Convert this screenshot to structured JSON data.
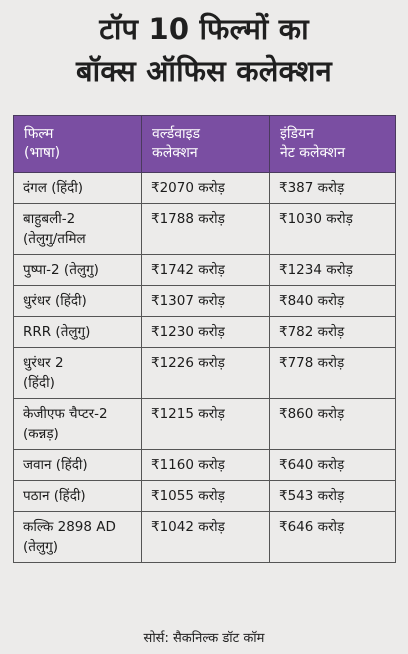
{
  "title": {
    "line1": "टॉप 10 फिल्मों का",
    "line2": "बॉक्स ऑफिस कलेक्शन"
  },
  "table": {
    "headers": [
      [
        "फिल्म",
        "(भाषा)"
      ],
      [
        "वर्ल्डवाइड",
        "कलेक्शन"
      ],
      [
        "इंडियन",
        "नेट कलेक्शन"
      ]
    ],
    "rows": [
      {
        "film": [
          "दंगल (हिंदी)"
        ],
        "worldwide": "₹2070 करोड़",
        "india": "₹387 करोड़"
      },
      {
        "film": [
          "बाहुबली-2",
          "(तेलुगु/तमिल"
        ],
        "worldwide": "₹1788 करोड़",
        "india": "₹1030 करोड़"
      },
      {
        "film": [
          "पुष्पा-2 (तेलुगु)"
        ],
        "worldwide": "₹1742 करोड़",
        "india": "₹1234 करोड़"
      },
      {
        "film": [
          "धुरंधर (हिंदी)"
        ],
        "worldwide": "₹1307 करोड़",
        "india": "₹840 करोड़"
      },
      {
        "film": [
          "RRR (तेलुगु)"
        ],
        "worldwide": "₹1230 करोड़",
        "india": "₹782 करोड़"
      },
      {
        "film": [
          "धुरंधर 2",
          "(हिंदी)"
        ],
        "worldwide": "₹1226 करोड़",
        "india": "₹778 करोड़"
      },
      {
        "film": [
          "केजीएफ चैप्टर-2",
          "(कन्नड़)"
        ],
        "worldwide": "₹1215 करोड़",
        "india": "₹860 करोड़"
      },
      {
        "film": [
          "जवान (हिंदी)"
        ],
        "worldwide": "₹1160 करोड़",
        "india": "₹640 करोड़"
      },
      {
        "film": [
          "पठान (हिंदी)"
        ],
        "worldwide": "₹1055 करोड़",
        "india": "₹543 करोड़"
      },
      {
        "film": [
          "कल्कि 2898 AD",
          "(तेलुगु)"
        ],
        "worldwide": "₹1042 करोड़",
        "india": "₹646 करोड़"
      }
    ]
  },
  "source": "सोर्स: सैकनिल्क डॉट कॉम",
  "colors": {
    "background": "#ecebea",
    "header_bg": "#7a4ea2",
    "header_text": "#ffffff"
  }
}
